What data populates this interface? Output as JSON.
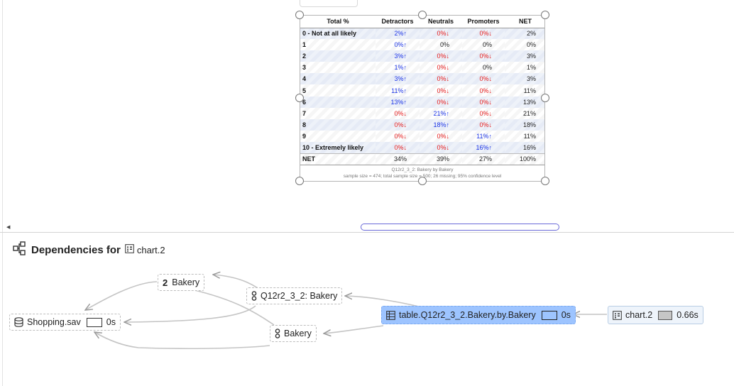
{
  "table": {
    "headers": [
      "Total %",
      "Detractors",
      "Neutrals",
      "Promoters",
      "NET"
    ],
    "rows": [
      {
        "label": "0 - Not at all likely",
        "d": "2%",
        "d_dir": "up",
        "d_color": "blue",
        "n": "0%",
        "n_dir": "down",
        "n_color": "red",
        "p": "0%",
        "p_dir": "down",
        "p_color": "red",
        "net": "2%"
      },
      {
        "label": "1",
        "d": "0%",
        "d_dir": "up",
        "d_color": "blue",
        "n": "0%",
        "n_dir": "",
        "n_color": "plain",
        "p": "0%",
        "p_dir": "",
        "p_color": "plain",
        "net": "0%"
      },
      {
        "label": "2",
        "d": "3%",
        "d_dir": "up",
        "d_color": "blue",
        "n": "0%",
        "n_dir": "down",
        "n_color": "red",
        "p": "0%",
        "p_dir": "down",
        "p_color": "red",
        "net": "3%"
      },
      {
        "label": "3",
        "d": "1%",
        "d_dir": "up",
        "d_color": "blue",
        "n": "0%",
        "n_dir": "down",
        "n_color": "red",
        "p": "0%",
        "p_dir": "",
        "p_color": "plain",
        "net": "1%"
      },
      {
        "label": "4",
        "d": "3%",
        "d_dir": "up",
        "d_color": "blue",
        "n": "0%",
        "n_dir": "down",
        "n_color": "red",
        "p": "0%",
        "p_dir": "down",
        "p_color": "red",
        "net": "3%"
      },
      {
        "label": "5",
        "d": "11%",
        "d_dir": "up",
        "d_color": "blue",
        "n": "0%",
        "n_dir": "down",
        "n_color": "red",
        "p": "0%",
        "p_dir": "down",
        "p_color": "red",
        "net": "11%"
      },
      {
        "label": "6",
        "d": "13%",
        "d_dir": "up",
        "d_color": "blue",
        "n": "0%",
        "n_dir": "down",
        "n_color": "red",
        "p": "0%",
        "p_dir": "down",
        "p_color": "red",
        "net": "13%"
      },
      {
        "label": "7",
        "d": "0%",
        "d_dir": "down",
        "d_color": "red",
        "n": "21%",
        "n_dir": "up",
        "n_color": "blue",
        "p": "0%",
        "p_dir": "down",
        "p_color": "red",
        "net": "21%"
      },
      {
        "label": "8",
        "d": "0%",
        "d_dir": "down",
        "d_color": "red",
        "n": "18%",
        "n_dir": "up",
        "n_color": "blue",
        "p": "0%",
        "p_dir": "down",
        "p_color": "red",
        "net": "18%"
      },
      {
        "label": "9",
        "d": "0%",
        "d_dir": "down",
        "d_color": "red",
        "n": "0%",
        "n_dir": "down",
        "n_color": "red",
        "p": "11%",
        "p_dir": "up",
        "p_color": "blue",
        "net": "11%"
      },
      {
        "label": "10 - Extremely likely",
        "d": "0%",
        "d_dir": "down",
        "d_color": "red",
        "n": "0%",
        "n_dir": "down",
        "n_color": "red",
        "p": "16%",
        "p_dir": "up",
        "p_color": "blue",
        "net": "16%"
      },
      {
        "label": "NET",
        "d": "34%",
        "d_dir": "",
        "d_color": "plain",
        "n": "39%",
        "n_dir": "",
        "n_color": "plain",
        "p": "27%",
        "p_dir": "",
        "p_color": "plain",
        "net": "100%"
      }
    ],
    "footer_line1": "Q12r2_3_2: Bakery by Bakery",
    "footer_line2": "sample size = 474; total sample size = 500; 26 missing; 95% confidence level"
  },
  "dependencies": {
    "title": "Dependencies for",
    "target": "chart.2",
    "nodes": {
      "bakery2": {
        "label": "Bakery",
        "prefix": "2",
        "icon": "number-icon"
      },
      "q12": {
        "label": "Q12r2_3_2: Bakery",
        "icon": "variable-icon"
      },
      "bakery": {
        "label": "Bakery",
        "icon": "variable-icon"
      },
      "shopping": {
        "label": "Shopping.sav",
        "time": "0s",
        "icon": "database-icon"
      },
      "table": {
        "label": "table.Q12r2_3_2.Bakery.by.Bakery",
        "time": "0s",
        "icon": "table-icon"
      },
      "chart": {
        "label": "chart.2",
        "time": "0.66s",
        "icon": "chart-icon"
      }
    }
  },
  "colors": {
    "up": "#1a33e6",
    "down": "#e61a1a",
    "selected_node": "#9dc4ff",
    "scrollbar": "#6a6ad8"
  }
}
